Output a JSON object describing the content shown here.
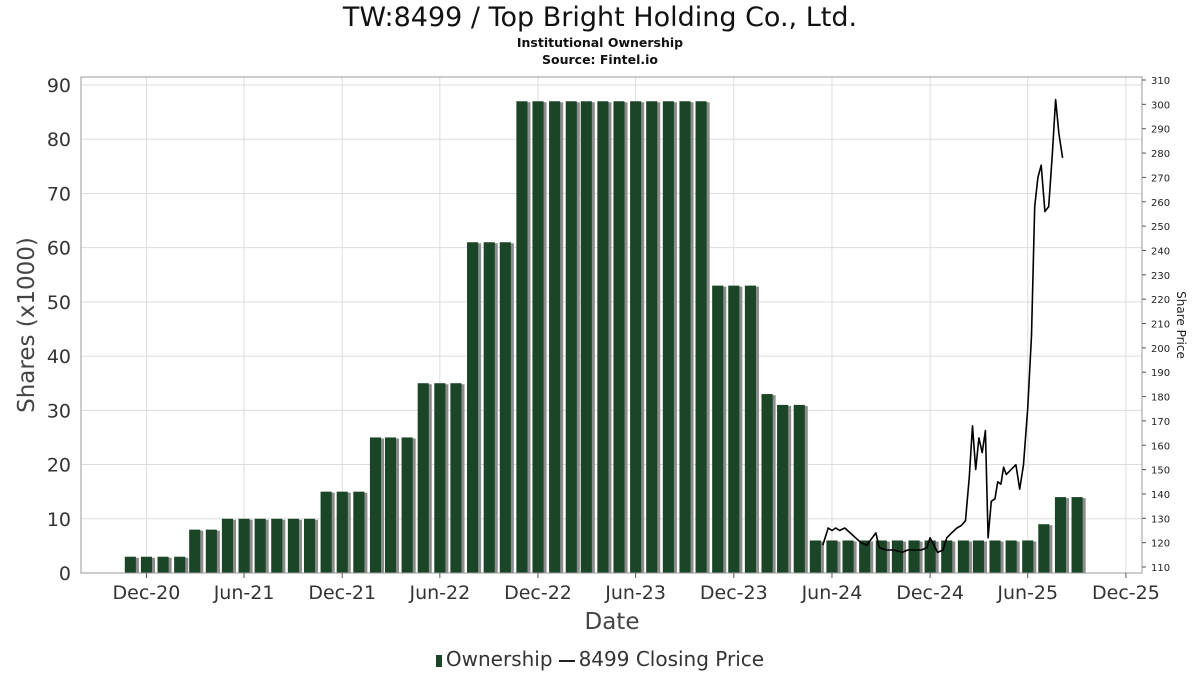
{
  "title": "TW:8499 / Top Bright Holding Co., Ltd.",
  "subtitle": "Institutional Ownership",
  "source": "Source: Fintel.io",
  "colors": {
    "bar": "#1a4526",
    "bar_shadow": "#8c8c8c",
    "line": "#000000",
    "grid": "#dddddd"
  },
  "chart_data": {
    "type": "bar",
    "xlabel": "Date",
    "ylabel": "Shares (x1000)",
    "y2label": "Share Price",
    "ylim": [
      0,
      90
    ],
    "y_ticks": [
      0,
      10,
      20,
      30,
      40,
      50,
      60,
      70,
      80,
      90
    ],
    "y2lim": [
      110,
      310
    ],
    "y2_ticks": [
      110,
      120,
      130,
      140,
      150,
      160,
      170,
      180,
      190,
      200,
      210,
      220,
      230,
      240,
      250,
      260,
      270,
      280,
      290,
      300,
      310
    ],
    "x_range": [
      "2020-08-01",
      "2025-12-31"
    ],
    "x_ticks": [
      {
        "label": "Dec-20",
        "date": "2020-12-01"
      },
      {
        "label": "Jun-21",
        "date": "2021-06-01"
      },
      {
        "label": "Dec-21",
        "date": "2021-12-01"
      },
      {
        "label": "Jun-22",
        "date": "2022-06-01"
      },
      {
        "label": "Dec-22",
        "date": "2022-12-01"
      },
      {
        "label": "Jun-23",
        "date": "2023-06-01"
      },
      {
        "label": "Dec-23",
        "date": "2023-12-01"
      },
      {
        "label": "Jun-24",
        "date": "2024-06-01"
      },
      {
        "label": "Dec-24",
        "date": "2024-12-01"
      },
      {
        "label": "Jun-25",
        "date": "2025-06-01"
      },
      {
        "label": "Dec-25",
        "date": "2025-12-01"
      }
    ],
    "grid": true,
    "legend_position": "bottom",
    "series": [
      {
        "name": "Ownership",
        "type": "bar",
        "points": [
          {
            "x": "2020-11-01",
            "y": 3
          },
          {
            "x": "2020-12-01",
            "y": 3
          },
          {
            "x": "2021-01-01",
            "y": 3
          },
          {
            "x": "2021-02-01",
            "y": 3
          },
          {
            "x": "2021-03-01",
            "y": 8
          },
          {
            "x": "2021-04-01",
            "y": 8
          },
          {
            "x": "2021-05-01",
            "y": 10
          },
          {
            "x": "2021-06-01",
            "y": 10
          },
          {
            "x": "2021-07-01",
            "y": 10
          },
          {
            "x": "2021-08-01",
            "y": 10
          },
          {
            "x": "2021-09-01",
            "y": 10
          },
          {
            "x": "2021-10-01",
            "y": 10
          },
          {
            "x": "2021-11-01",
            "y": 15
          },
          {
            "x": "2021-12-01",
            "y": 15
          },
          {
            "x": "2022-01-01",
            "y": 15
          },
          {
            "x": "2022-02-01",
            "y": 25
          },
          {
            "x": "2022-03-01",
            "y": 25
          },
          {
            "x": "2022-04-01",
            "y": 25
          },
          {
            "x": "2022-05-01",
            "y": 35
          },
          {
            "x": "2022-06-01",
            "y": 35
          },
          {
            "x": "2022-07-01",
            "y": 35
          },
          {
            "x": "2022-08-01",
            "y": 61
          },
          {
            "x": "2022-09-01",
            "y": 61
          },
          {
            "x": "2022-10-01",
            "y": 61
          },
          {
            "x": "2022-11-01",
            "y": 87
          },
          {
            "x": "2022-12-01",
            "y": 87
          },
          {
            "x": "2023-01-01",
            "y": 87
          },
          {
            "x": "2023-02-01",
            "y": 87
          },
          {
            "x": "2023-03-01",
            "y": 87
          },
          {
            "x": "2023-04-01",
            "y": 87
          },
          {
            "x": "2023-05-01",
            "y": 87
          },
          {
            "x": "2023-06-01",
            "y": 87
          },
          {
            "x": "2023-07-01",
            "y": 87
          },
          {
            "x": "2023-08-01",
            "y": 87
          },
          {
            "x": "2023-09-01",
            "y": 87
          },
          {
            "x": "2023-10-01",
            "y": 87
          },
          {
            "x": "2023-11-01",
            "y": 53
          },
          {
            "x": "2023-12-01",
            "y": 53
          },
          {
            "x": "2024-01-01",
            "y": 53
          },
          {
            "x": "2024-02-01",
            "y": 33
          },
          {
            "x": "2024-03-01",
            "y": 31
          },
          {
            "x": "2024-04-01",
            "y": 31
          },
          {
            "x": "2024-05-01",
            "y": 6
          },
          {
            "x": "2024-06-01",
            "y": 6
          },
          {
            "x": "2024-07-01",
            "y": 6
          },
          {
            "x": "2024-08-01",
            "y": 6
          },
          {
            "x": "2024-09-01",
            "y": 6
          },
          {
            "x": "2024-10-01",
            "y": 6
          },
          {
            "x": "2024-11-01",
            "y": 6
          },
          {
            "x": "2024-12-01",
            "y": 6
          },
          {
            "x": "2025-01-01",
            "y": 6
          },
          {
            "x": "2025-02-01",
            "y": 6
          },
          {
            "x": "2025-03-01",
            "y": 6
          },
          {
            "x": "2025-04-01",
            "y": 6
          },
          {
            "x": "2025-05-01",
            "y": 6
          },
          {
            "x": "2025-06-01",
            "y": 6
          },
          {
            "x": "2025-07-01",
            "y": 9
          },
          {
            "x": "2025-08-01",
            "y": 14
          },
          {
            "x": "2025-09-01",
            "y": 14
          }
        ]
      },
      {
        "name": "8499 Closing Price",
        "type": "line",
        "axis": "right",
        "points": [
          {
            "x": "2024-05-15",
            "y": 119
          },
          {
            "x": "2024-05-25",
            "y": 126
          },
          {
            "x": "2024-06-01",
            "y": 125
          },
          {
            "x": "2024-06-08",
            "y": 126
          },
          {
            "x": "2024-06-15",
            "y": 125
          },
          {
            "x": "2024-06-25",
            "y": 126
          },
          {
            "x": "2024-07-05",
            "y": 124
          },
          {
            "x": "2024-07-15",
            "y": 122
          },
          {
            "x": "2024-07-25",
            "y": 120
          },
          {
            "x": "2024-08-05",
            "y": 119
          },
          {
            "x": "2024-08-15",
            "y": 122
          },
          {
            "x": "2024-08-22",
            "y": 124
          },
          {
            "x": "2024-08-28",
            "y": 118
          },
          {
            "x": "2024-09-10",
            "y": 117
          },
          {
            "x": "2024-09-25",
            "y": 117
          },
          {
            "x": "2024-10-10",
            "y": 116
          },
          {
            "x": "2024-10-20",
            "y": 117
          },
          {
            "x": "2024-11-01",
            "y": 117
          },
          {
            "x": "2024-11-15",
            "y": 117
          },
          {
            "x": "2024-11-25",
            "y": 118
          },
          {
            "x": "2024-12-01",
            "y": 122
          },
          {
            "x": "2024-12-08",
            "y": 119
          },
          {
            "x": "2024-12-15",
            "y": 116
          },
          {
            "x": "2024-12-25",
            "y": 117
          },
          {
            "x": "2025-01-01",
            "y": 122
          },
          {
            "x": "2025-01-10",
            "y": 124
          },
          {
            "x": "2025-01-20",
            "y": 126
          },
          {
            "x": "2025-01-28",
            "y": 127
          },
          {
            "x": "2025-02-05",
            "y": 129
          },
          {
            "x": "2025-02-12",
            "y": 147
          },
          {
            "x": "2025-02-18",
            "y": 168
          },
          {
            "x": "2025-02-24",
            "y": 150
          },
          {
            "x": "2025-03-02",
            "y": 163
          },
          {
            "x": "2025-03-08",
            "y": 157
          },
          {
            "x": "2025-03-14",
            "y": 166
          },
          {
            "x": "2025-03-19",
            "y": 122
          },
          {
            "x": "2025-03-25",
            "y": 137
          },
          {
            "x": "2025-04-01",
            "y": 138
          },
          {
            "x": "2025-04-06",
            "y": 145
          },
          {
            "x": "2025-04-12",
            "y": 144
          },
          {
            "x": "2025-04-17",
            "y": 151
          },
          {
            "x": "2025-04-22",
            "y": 148
          },
          {
            "x": "2025-05-01",
            "y": 150
          },
          {
            "x": "2025-05-10",
            "y": 152
          },
          {
            "x": "2025-05-17",
            "y": 142
          },
          {
            "x": "2025-05-24",
            "y": 152
          },
          {
            "x": "2025-06-01",
            "y": 175
          },
          {
            "x": "2025-06-08",
            "y": 205
          },
          {
            "x": "2025-06-14",
            "y": 258
          },
          {
            "x": "2025-06-20",
            "y": 270
          },
          {
            "x": "2025-06-26",
            "y": 275
          },
          {
            "x": "2025-07-03",
            "y": 256
          },
          {
            "x": "2025-07-10",
            "y": 258
          },
          {
            "x": "2025-07-17",
            "y": 280
          },
          {
            "x": "2025-07-23",
            "y": 302
          },
          {
            "x": "2025-07-29",
            "y": 288
          },
          {
            "x": "2025-08-05",
            "y": 278
          }
        ]
      }
    ]
  }
}
